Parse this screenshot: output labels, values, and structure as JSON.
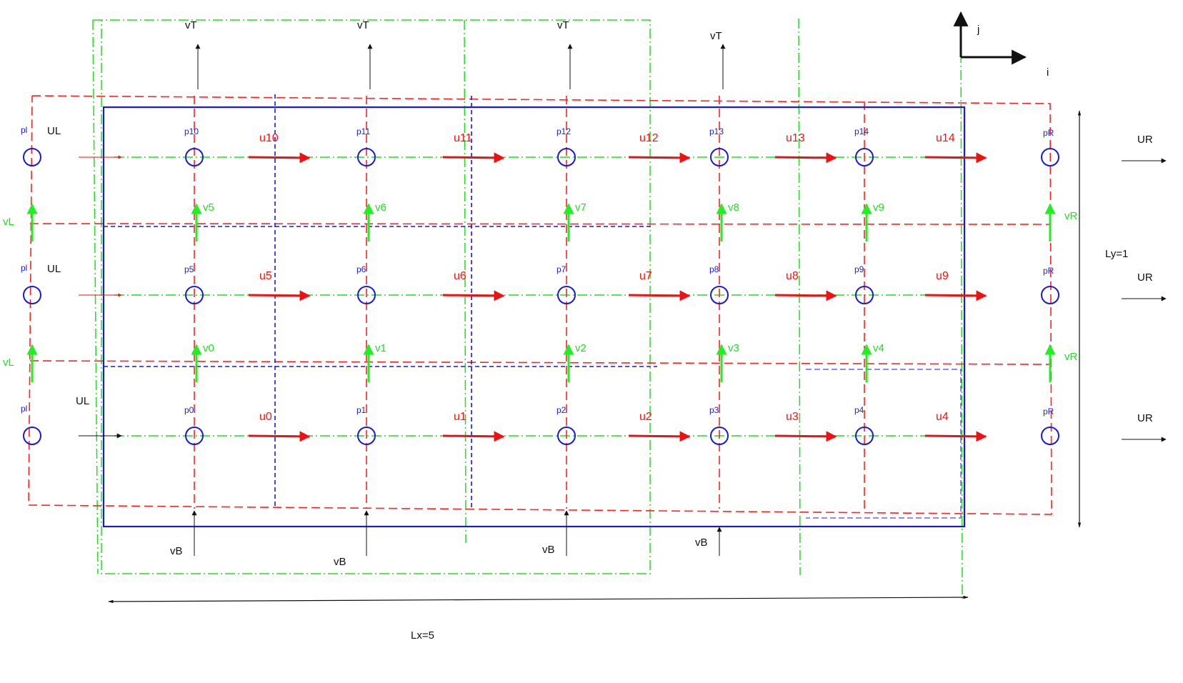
{
  "colors": {
    "pressure_node": "#1a1ad8",
    "u_arrow": "#ee1111",
    "v_arrow": "#22ee22",
    "boundary": "#1a1ad8",
    "red_dashed": "#ff2222",
    "green_dashdot": "#22dd22",
    "blue_dashed": "#1a1ad8",
    "annotation": "#111111"
  },
  "axes": {
    "j_label": "j",
    "i_label": "i"
  },
  "dimensions": {
    "lx_label": "Lx=5",
    "ly_label": "Ly=1"
  },
  "pressure_nodes": [
    [
      "p0",
      "p1",
      "p2",
      "p3",
      "p4"
    ],
    [
      "p5",
      "p6",
      "p7",
      "p8",
      "p9"
    ],
    [
      "p10",
      "p11",
      "p12",
      "p13",
      "p14"
    ]
  ],
  "left_pressure": [
    "pl",
    "pl",
    "pl"
  ],
  "right_pressure": [
    "pR",
    "pR",
    "pR"
  ],
  "u_velocities": [
    [
      "u0",
      "u1",
      "u2",
      "u3",
      "u4"
    ],
    [
      "u5",
      "u6",
      "u7",
      "u8",
      "u9"
    ],
    [
      "u10",
      "u11",
      "u12",
      "u13",
      "u14"
    ]
  ],
  "v_velocities": [
    [
      "v0",
      "v1",
      "v2",
      "v3",
      "v4"
    ],
    [
      "v5",
      "v6",
      "v7",
      "v8",
      "v9"
    ]
  ],
  "boundary": {
    "left_u": [
      "UL",
      "UL",
      "UL"
    ],
    "right_u": [
      "UR",
      "UR",
      "UR"
    ],
    "left_v": [
      "vL",
      "vL"
    ],
    "right_v": [
      "vR",
      "vR"
    ],
    "top_v": [
      "vT",
      "vT",
      "vT",
      "vT"
    ],
    "bottom_v": [
      "vB",
      "vB",
      "vB",
      "vB"
    ]
  }
}
